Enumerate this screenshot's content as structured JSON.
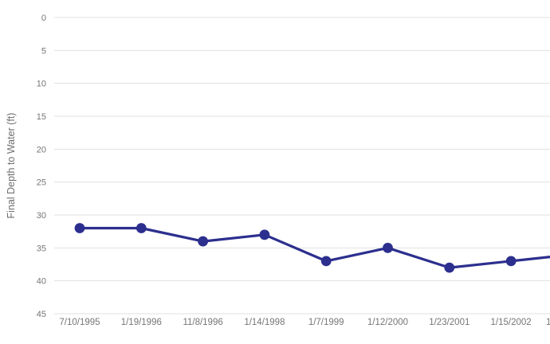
{
  "chart_data": {
    "type": "line",
    "title": "",
    "xlabel": "",
    "ylabel": "Final Depth to Water (ft)",
    "categories": [
      "7/10/1995",
      "1/19/1996",
      "11/8/1996",
      "1/14/1998",
      "1/7/1999",
      "1/12/2000",
      "1/23/2001",
      "1/15/2002"
    ],
    "series": [
      {
        "name": "Final Depth to Water",
        "values": [
          32,
          32,
          34,
          33,
          37,
          35,
          38,
          37
        ]
      }
    ],
    "clipped_next_point": {
      "label_fragment": "1",
      "value": 36
    },
    "y_ticks": [
      0,
      5,
      10,
      15,
      20,
      25,
      30,
      35,
      40,
      45
    ],
    "ylim": [
      0,
      45
    ],
    "y_axis_inverted": true,
    "grid": "horizontal-only",
    "legend_position": "none",
    "marker": "filled-circle",
    "colors": {
      "line": "#2c2f8e",
      "marker": "#2c2f8e",
      "grid": "#e1e1e1",
      "tick_text": "#767676",
      "axis_title_text": "#6e6e6e",
      "background": "#ffffff"
    }
  }
}
